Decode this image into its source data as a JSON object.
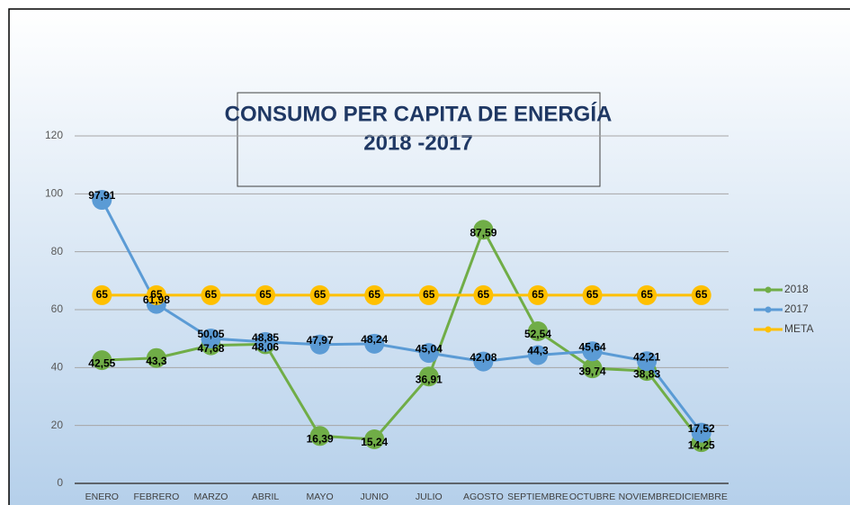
{
  "chart_data": {
    "type": "line",
    "title": [
      "CONSUMO PER CAPITA DE ENERGÍA",
      "2018 -2017"
    ],
    "categories": [
      "ENERO",
      "FEBRERO",
      "MARZO",
      "ABRIL",
      "MAYO",
      "JUNIO",
      "JULIO",
      "AGOSTO",
      "SEPTIEMBRE",
      "OCTUBRE",
      "NOVIEMBRE",
      "DICIEMBRE"
    ],
    "series": [
      {
        "name": "2018",
        "color": "#70ad47",
        "values": [
          42.55,
          43.3,
          47.68,
          48.06,
          16.39,
          15.24,
          36.91,
          87.59,
          52.54,
          39.74,
          38.83,
          14.25
        ],
        "value_labels": [
          "42,55",
          "43,3",
          "47,68",
          "48,06",
          "16,39",
          "15,24",
          "36,91",
          "87,59",
          "52,54",
          "39,74",
          "38,83",
          "14,25"
        ]
      },
      {
        "name": "2017",
        "color": "#5b9bd5",
        "values": [
          97.91,
          61.98,
          50.05,
          48.85,
          47.97,
          48.24,
          45.04,
          42.08,
          44.3,
          45.64,
          42.21,
          17.52
        ],
        "value_labels": [
          "97,91",
          "61,98",
          "50,05",
          "48,85",
          "47,97",
          "48,24",
          "45,04",
          "42,08",
          "44,3",
          "45,64",
          "42,21",
          "17,52"
        ]
      },
      {
        "name": "META",
        "color": "#ffc000",
        "values": [
          65,
          65,
          65,
          65,
          65,
          65,
          65,
          65,
          65,
          65,
          65,
          65
        ]
      }
    ],
    "ylim": [
      0,
      120
    ],
    "yticks": [
      0,
      20,
      40,
      60,
      80,
      100,
      120
    ],
    "grid": true,
    "legend": "right"
  }
}
